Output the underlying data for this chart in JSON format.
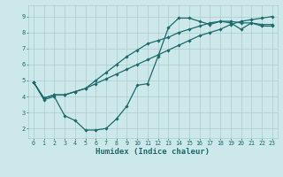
{
  "title": "",
  "xlabel": "Humidex (Indice chaleur)",
  "bg_color": "#cce8ea",
  "grid_color": "#aacccc",
  "line_color": "#1a6b6b",
  "xlim": [
    -0.5,
    23.5
  ],
  "ylim": [
    1.4,
    9.7
  ],
  "xticks": [
    0,
    1,
    2,
    3,
    4,
    5,
    6,
    7,
    8,
    9,
    10,
    11,
    12,
    13,
    14,
    15,
    16,
    17,
    18,
    19,
    20,
    21,
    22,
    23
  ],
  "yticks": [
    2,
    3,
    4,
    5,
    6,
    7,
    8,
    9
  ],
  "line1_x": [
    0,
    1,
    2,
    3,
    4,
    5,
    6,
    7,
    8,
    9,
    10,
    11,
    12,
    13,
    14,
    15,
    16,
    17,
    18,
    19,
    20,
    21,
    22,
    23
  ],
  "line1_y": [
    4.9,
    3.8,
    4.0,
    2.8,
    2.5,
    1.9,
    1.9,
    2.0,
    2.6,
    3.4,
    4.7,
    4.8,
    6.5,
    8.3,
    8.9,
    8.9,
    8.7,
    8.5,
    8.7,
    8.6,
    8.2,
    8.6,
    8.4,
    8.4
  ],
  "line2_x": [
    0,
    1,
    2,
    3,
    4,
    5,
    6,
    7,
    8,
    9,
    10,
    11,
    12,
    13,
    14,
    15,
    16,
    17,
    18,
    19,
    20,
    21,
    22,
    23
  ],
  "line2_y": [
    4.9,
    3.9,
    4.1,
    4.1,
    4.3,
    4.5,
    4.8,
    5.1,
    5.4,
    5.7,
    6.0,
    6.3,
    6.6,
    6.9,
    7.2,
    7.5,
    7.8,
    8.0,
    8.2,
    8.5,
    8.7,
    8.8,
    8.9,
    9.0
  ],
  "line3_x": [
    0,
    1,
    2,
    3,
    4,
    5,
    6,
    7,
    8,
    9,
    10,
    11,
    12,
    13,
    14,
    15,
    16,
    17,
    18,
    19,
    20,
    21,
    22,
    23
  ],
  "line3_y": [
    4.9,
    3.9,
    4.1,
    4.1,
    4.3,
    4.5,
    5.0,
    5.5,
    6.0,
    6.5,
    6.9,
    7.3,
    7.5,
    7.7,
    8.0,
    8.2,
    8.4,
    8.6,
    8.7,
    8.7,
    8.6,
    8.6,
    8.5,
    8.5
  ],
  "xlabel_fontsize": 6.5,
  "tick_fontsize": 4.8
}
